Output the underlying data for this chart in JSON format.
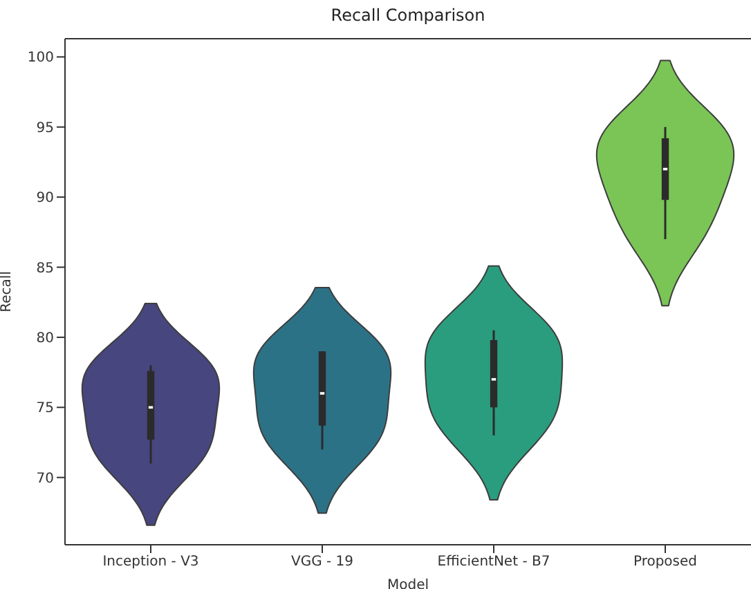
{
  "chart_data": {
    "type": "box",
    "title": "Recall Comparison",
    "xlabel": "Model",
    "ylabel": "Recall",
    "categories": [
      "Inception - V3",
      "VGG - 19",
      "EfficientNet - B7",
      "Proposed"
    ],
    "series": [
      {
        "color": "#2b2b2b",
        "boxes": [
          {
            "low": 71,
            "q1": 72.7,
            "median": 75,
            "q3": 77.6,
            "high": 78
          },
          {
            "low": 72,
            "q1": 73.7,
            "median": 76,
            "q3": 79,
            "high": 79
          },
          {
            "low": 73,
            "q1": 75,
            "median": 77,
            "q3": 79.8,
            "high": 80.5
          },
          {
            "low": 87,
            "q1": 89.8,
            "median": 92,
            "q3": 94.2,
            "high": 95
          }
        ]
      }
    ],
    "colors": [
      "#47467f",
      "#2c7287",
      "#2b9d7f",
      "#7ac556"
    ],
    "ylim": [
      65.2,
      101.3
    ],
    "yticks": [
      70,
      75,
      80,
      85,
      90,
      95,
      100
    ]
  }
}
